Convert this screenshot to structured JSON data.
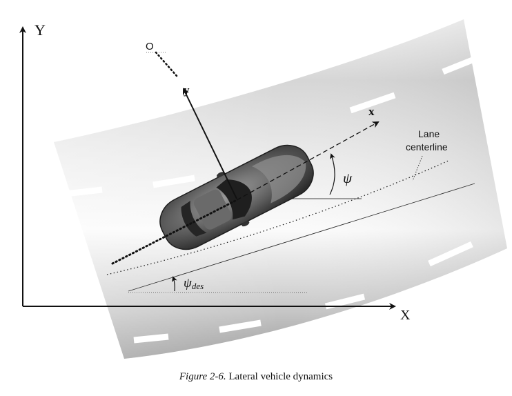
{
  "figure": {
    "caption_label": "Figure 2-6.",
    "caption_text": "Lateral vehicle dynamics"
  },
  "axes": {
    "global_y_label": "Y",
    "global_x_label": "X",
    "origin_label": "O",
    "body_x_label": "x",
    "body_y_label": "y"
  },
  "angles": {
    "heading_label": "ψ",
    "desired_heading_symbol": "ψ",
    "desired_heading_subscript": "des"
  },
  "annotations": {
    "lane_label_line1": "Lane",
    "lane_label_line2": "centerline"
  },
  "colors": {
    "road_light": "#fafafa",
    "road_dark": "#a9a9a9",
    "car_body": "#5a5a5a",
    "ink": "#111111"
  }
}
